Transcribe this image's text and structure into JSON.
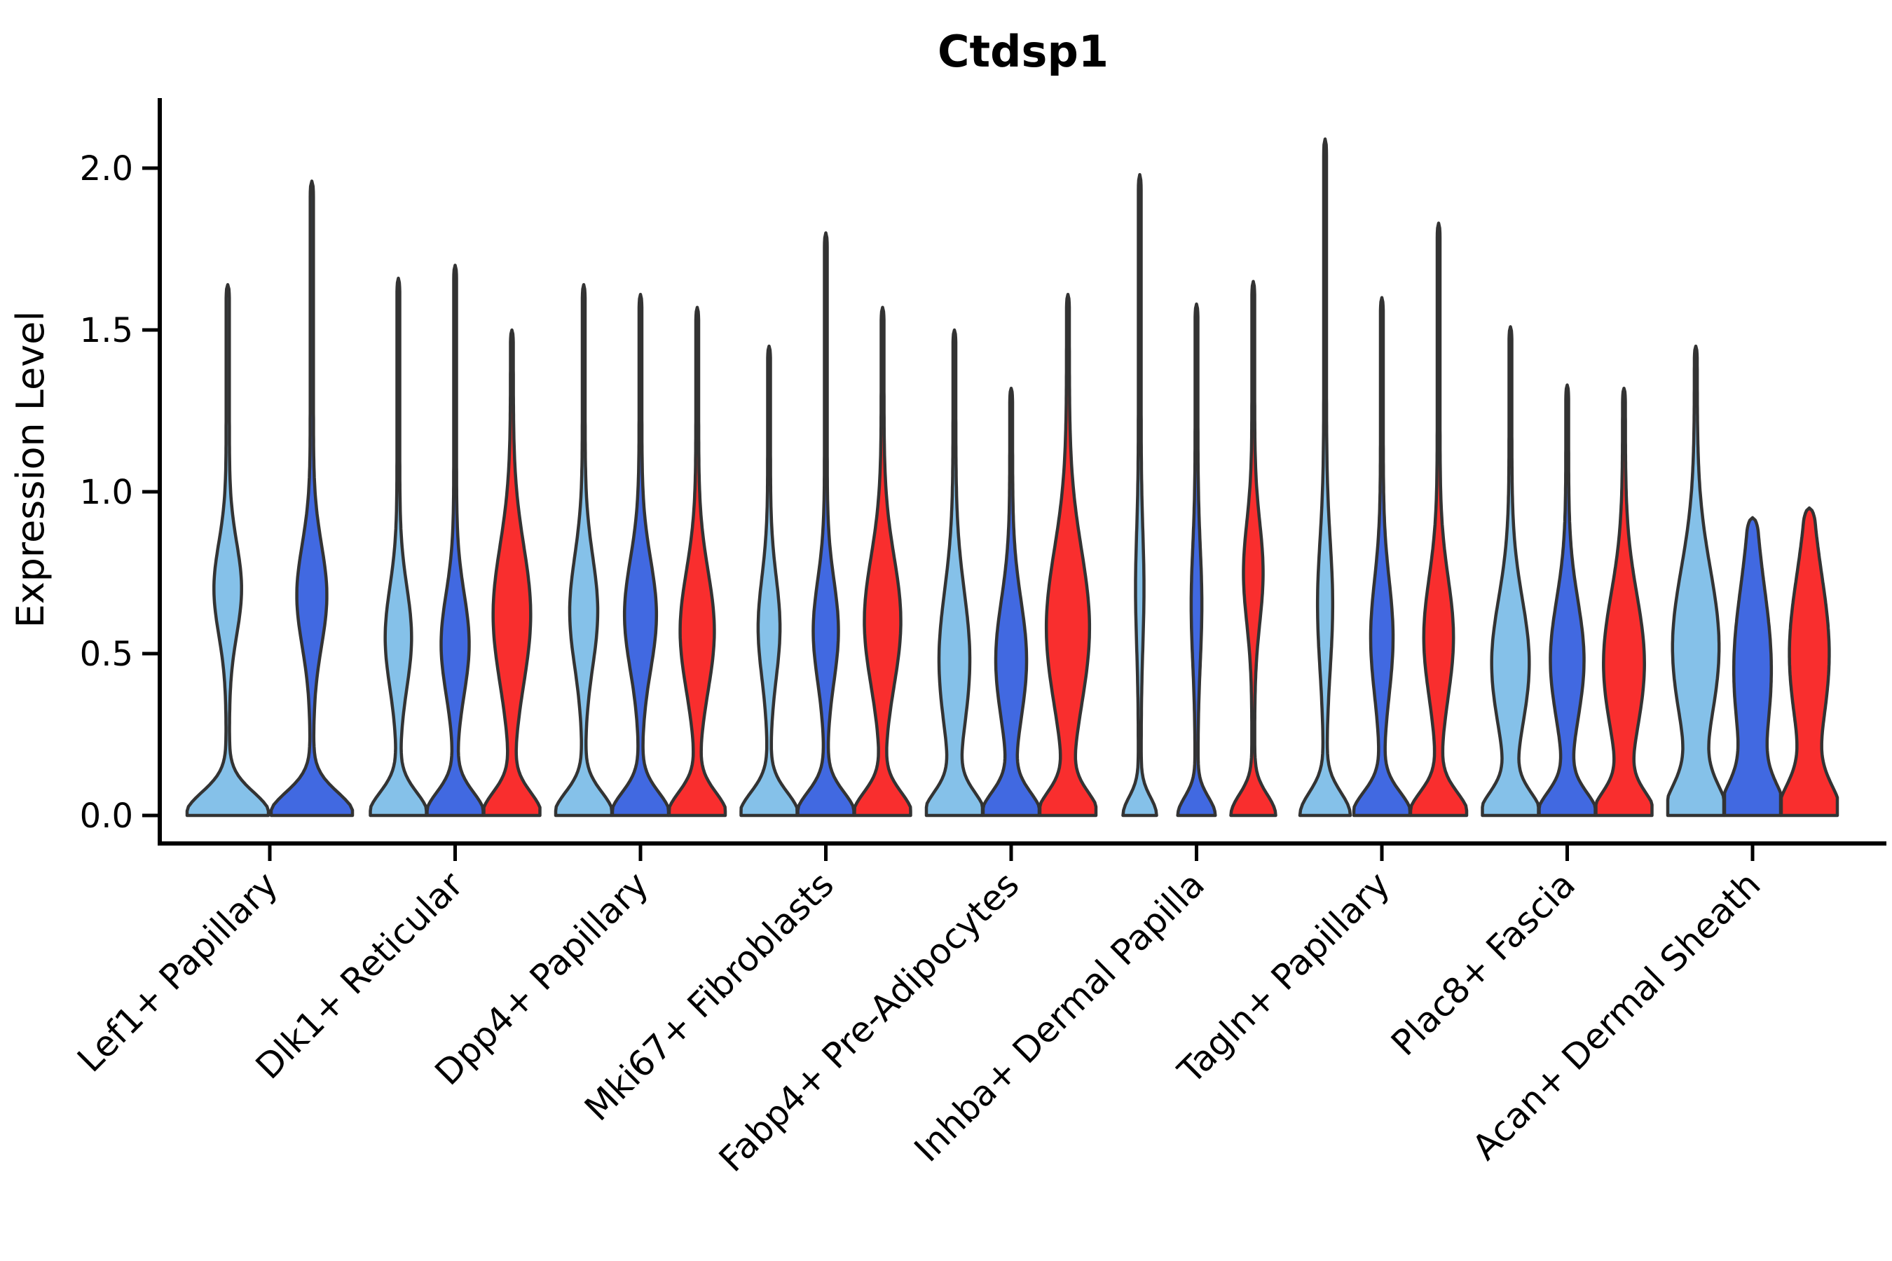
{
  "figure": {
    "title": "Ctdsp1",
    "background": "#ffffff"
  },
  "chart_data": {
    "type": "violin",
    "title": "Ctdsp1",
    "xlabel": "",
    "ylabel": "Expression Level",
    "ylim": [
      -0.08,
      2.25
    ],
    "yticks": [
      0.0,
      0.5,
      1.0,
      1.5,
      2.0
    ],
    "grid": false,
    "legend": "none",
    "axis_color": "#000000",
    "outline_color": "#333333",
    "series_colors": {
      "light_blue": "#85C1E9",
      "dark_blue": "#4169E1",
      "red": "#F92E2E"
    },
    "categories": [
      "Lef1+ Papillary",
      "Dlk1+ Reticular",
      "Dpp4+ Papillary",
      "Mki67+ Fibroblasts",
      "Fabp4+ Pre-Adipocytes",
      "Inhba+ Dermal Papilla",
      "Tagln+ Papillary",
      "Plac8+ Fascia",
      "Acan+ Dermal Sheath"
    ],
    "violins": [
      {
        "category": "Lef1+ Papillary",
        "cells": [
          {
            "series": "light_blue",
            "max": 1.64,
            "bulge_pos": 0.7,
            "bulge_width": 0.3,
            "bulge_sigma": 0.2,
            "stem": 0.04
          },
          {
            "series": "dark_blue",
            "max": 1.96,
            "bulge_pos": 0.68,
            "bulge_width": 0.33,
            "bulge_sigma": 0.22,
            "stem": 0.04
          }
        ]
      },
      {
        "category": "Dlk1+ Reticular",
        "cells": [
          {
            "series": "light_blue",
            "max": 1.66,
            "bulge_pos": 0.55,
            "bulge_width": 0.42,
            "bulge_sigma": 0.22
          },
          {
            "series": "dark_blue",
            "max": 1.7,
            "bulge_pos": 0.53,
            "bulge_width": 0.45,
            "bulge_sigma": 0.22
          },
          {
            "series": "red",
            "max": 1.5,
            "bulge_pos": 0.62,
            "bulge_width": 0.62,
            "bulge_sigma": 0.3
          }
        ]
      },
      {
        "category": "Dpp4+ Papillary",
        "cells": [
          {
            "series": "light_blue",
            "max": 1.64,
            "bulge_pos": 0.63,
            "bulge_width": 0.45,
            "bulge_sigma": 0.24
          },
          {
            "series": "dark_blue",
            "max": 1.61,
            "bulge_pos": 0.62,
            "bulge_width": 0.52,
            "bulge_sigma": 0.24
          },
          {
            "series": "red",
            "max": 1.57,
            "bulge_pos": 0.57,
            "bulge_width": 0.56,
            "bulge_sigma": 0.26
          }
        ]
      },
      {
        "category": "Mki67+ Fibroblasts",
        "cells": [
          {
            "series": "light_blue",
            "max": 1.45,
            "bulge_pos": 0.58,
            "bulge_width": 0.34,
            "bulge_sigma": 0.22
          },
          {
            "series": "dark_blue",
            "max": 1.8,
            "bulge_pos": 0.57,
            "bulge_width": 0.4,
            "bulge_sigma": 0.22
          },
          {
            "series": "red",
            "max": 1.57,
            "bulge_pos": 0.6,
            "bulge_width": 0.6,
            "bulge_sigma": 0.28
          }
        ]
      },
      {
        "category": "Fabp4+ Pre-Adipocytes",
        "cells": [
          {
            "series": "light_blue",
            "max": 1.5,
            "bulge_pos": 0.48,
            "bulge_width": 0.5,
            "bulge_sigma": 0.3
          },
          {
            "series": "dark_blue",
            "max": 1.32,
            "bulge_pos": 0.48,
            "bulge_width": 0.5,
            "bulge_sigma": 0.26
          },
          {
            "series": "red",
            "max": 1.61,
            "bulge_pos": 0.58,
            "bulge_width": 0.72,
            "bulge_sigma": 0.34
          }
        ]
      },
      {
        "category": "Inhba+ Dermal Papilla",
        "cells": [
          {
            "series": "light_blue",
            "max": 1.98,
            "bulge_pos": 0.7,
            "bulge_width": 0.1,
            "bulge_sigma": 0.25,
            "base_w": 0.55,
            "base_sigma": 0.08
          },
          {
            "series": "dark_blue",
            "max": 1.58,
            "bulge_pos": 0.65,
            "bulge_width": 0.14,
            "bulge_sigma": 0.25,
            "base_w": 0.62,
            "base_sigma": 0.08
          },
          {
            "series": "red",
            "max": 1.65,
            "bulge_pos": 0.75,
            "bulge_width": 0.3,
            "bulge_sigma": 0.22,
            "base_w": 0.75,
            "base_sigma": 0.09
          }
        ]
      },
      {
        "category": "Tagln+ Papillary",
        "cells": [
          {
            "series": "light_blue",
            "max": 2.09,
            "bulge_pos": 0.65,
            "bulge_width": 0.22,
            "bulge_sigma": 0.28,
            "base_w": 0.85
          },
          {
            "series": "dark_blue",
            "max": 1.6,
            "bulge_pos": 0.55,
            "bulge_width": 0.35,
            "bulge_sigma": 0.25
          },
          {
            "series": "red",
            "max": 1.83,
            "bulge_pos": 0.55,
            "bulge_width": 0.48,
            "bulge_sigma": 0.26
          }
        ]
      },
      {
        "category": "Plac8+ Fascia",
        "cells": [
          {
            "series": "light_blue",
            "max": 1.51,
            "bulge_pos": 0.47,
            "bulge_width": 0.62,
            "bulge_sigma": 0.28
          },
          {
            "series": "dark_blue",
            "max": 1.33,
            "bulge_pos": 0.48,
            "bulge_width": 0.55,
            "bulge_sigma": 0.26
          },
          {
            "series": "red",
            "max": 1.32,
            "bulge_pos": 0.47,
            "bulge_width": 0.68,
            "bulge_sigma": 0.3
          }
        ]
      },
      {
        "category": "Acan+ Dermal Sheath",
        "cells": [
          {
            "series": "light_blue",
            "max": 1.45,
            "bulge_pos": 0.52,
            "bulge_width": 0.78,
            "bulge_sigma": 0.34,
            "base_sigma": 0.13
          },
          {
            "series": "dark_blue",
            "max": 0.92,
            "bulge_pos": 0.45,
            "bulge_width": 0.62,
            "bulge_sigma": 0.36,
            "base_sigma": 0.13
          },
          {
            "series": "red",
            "max": 0.95,
            "bulge_pos": 0.5,
            "bulge_width": 0.66,
            "bulge_sigma": 0.34,
            "base_sigma": 0.13
          }
        ]
      }
    ]
  }
}
